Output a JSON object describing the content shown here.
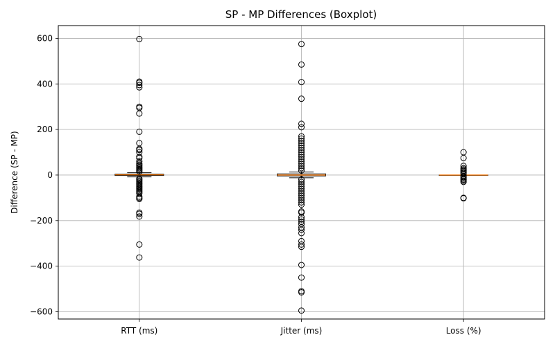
{
  "chart_data": {
    "type": "boxplot",
    "title": "SP - MP Differences (Boxplot)",
    "xlabel": "",
    "ylabel": "Difference (SP - MP)",
    "ylim": [
      -632,
      656
    ],
    "yticks": [
      600,
      400,
      200,
      0,
      -200,
      -400,
      -600
    ],
    "ytick_labels": [
      "600",
      "400",
      "200",
      "0",
      "−200",
      "−400",
      "−600"
    ],
    "grid": true,
    "colors": {
      "median": "#ff7f0e",
      "box": "#000000",
      "outlier_edge": "#000000",
      "grid": "#b0b0b0"
    },
    "categories": [
      "RTT (ms)",
      "Jitter (ms)",
      "Loss (%)"
    ],
    "series": [
      {
        "name": "RTT (ms)",
        "q1": -2,
        "median": 1,
        "q3": 4,
        "whisker_low": -8,
        "whisker_high": 10,
        "outliers": [
          597,
          410,
          405,
          395,
          385,
          300,
          295,
          270,
          190,
          140,
          115,
          110,
          100,
          80,
          75,
          60,
          50,
          45,
          40,
          35,
          30,
          25,
          20,
          15,
          -15,
          -20,
          -25,
          -30,
          -35,
          -40,
          -45,
          -50,
          -55,
          -60,
          -65,
          -70,
          -75,
          -80,
          -95,
          -100,
          -105,
          -165,
          -170,
          -182,
          -305,
          -362
        ]
      },
      {
        "name": "Jitter (ms)",
        "q1": -4,
        "median": 0,
        "q3": 5,
        "whisker_low": -12,
        "whisker_high": 13,
        "outliers": [
          575,
          485,
          408,
          335,
          225,
          210,
          170,
          160,
          150,
          140,
          130,
          120,
          110,
          100,
          90,
          80,
          70,
          60,
          50,
          40,
          30,
          20,
          -20,
          -30,
          -40,
          -50,
          -60,
          -70,
          -80,
          -90,
          -100,
          -110,
          -120,
          -130,
          -160,
          -165,
          -185,
          -195,
          -205,
          -215,
          -230,
          -240,
          -255,
          -290,
          -305,
          -315,
          -395,
          -450,
          -510,
          -515,
          -595
        ]
      },
      {
        "name": "Loss (%)",
        "q1": 0,
        "median": 0,
        "q3": 0,
        "whisker_low": 0,
        "whisker_high": 0,
        "outliers": [
          100,
          75,
          40,
          30,
          25,
          20,
          15,
          10,
          5,
          -5,
          -10,
          -15,
          -20,
          -25,
          -30,
          -100,
          -102
        ]
      }
    ]
  }
}
